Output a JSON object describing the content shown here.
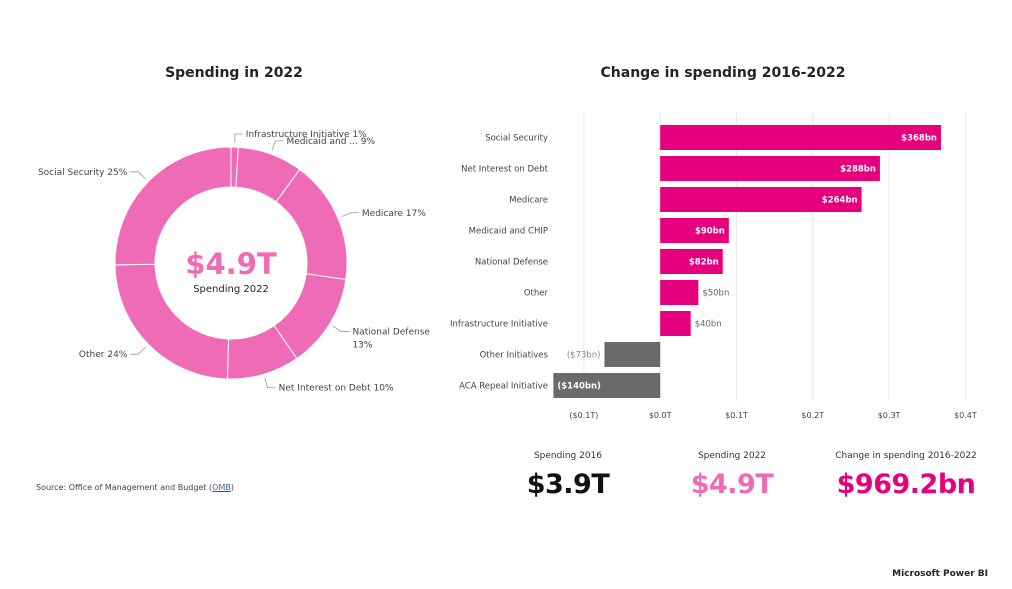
{
  "colors": {
    "pink": "#f06bb5",
    "magenta": "#e6007e",
    "gray": "#6a6a6a",
    "white": "#ffffff",
    "label": "#444444"
  },
  "source": {
    "prefix": "Source: Office of Management and Budget (",
    "link": "OMB",
    "suffix": ")"
  },
  "kpis": [
    {
      "label": "Spending 2016",
      "value": "$3.9T",
      "color": "#111111"
    },
    {
      "label": "Spending 2022",
      "value": "$4.9T",
      "color": "#f06bb5"
    },
    {
      "label": "Change in spending 2016-2022",
      "value": "$969.2bn",
      "color": "#e6007e"
    }
  ],
  "brand": "Microsoft Power BI",
  "chart_data": [
    {
      "type": "pie",
      "title": "Spending in 2022",
      "center_value": "$4.9T",
      "center_label": "Spending 2022",
      "slices": [
        {
          "name": "Infrastructure Initiative",
          "value": 1,
          "label": "Infrastructure Initiative 1%"
        },
        {
          "name": "Medicaid and ...",
          "value": 9,
          "label": "Medicaid and ... 9%"
        },
        {
          "name": "Medicare",
          "value": 17,
          "label": "Medicare 17%"
        },
        {
          "name": "National Defense",
          "value": 13,
          "label_lines": [
            "National Defense",
            "13%"
          ]
        },
        {
          "name": "Net Interest on Debt",
          "value": 10,
          "label": "Net Interest on Debt 10%"
        },
        {
          "name": "Other",
          "value": 24,
          "label": "Other 24%"
        },
        {
          "name": "Social Security",
          "value": 25,
          "label": "Social Security 25%"
        }
      ]
    },
    {
      "type": "bar",
      "orientation": "horizontal",
      "title": "Change in spending 2016-2022",
      "categories": [
        "Social Security",
        "Net Interest on Debt",
        "Medicare",
        "Medicaid and CHIP",
        "National Defense",
        "Other",
        "Infrastructure Initiative",
        "Other Initiatives",
        "ACA Repeal Initiative"
      ],
      "values": [
        368,
        288,
        264,
        90,
        82,
        50,
        40,
        -73,
        -140
      ],
      "value_labels": [
        "$368bn",
        "$288bn",
        "$264bn",
        "$90bn",
        "$82bn",
        "$50bn",
        "$40bn",
        "($73bn)",
        "($140bn)"
      ],
      "xlim": [
        -130,
        410
      ],
      "xticks": [
        -100,
        0,
        100,
        200,
        300,
        400
      ],
      "xtick_labels": [
        "($0.1T)",
        "$0.0T",
        "$0.1T",
        "$0.2T",
        "$0.3T",
        "$0.4T"
      ],
      "grid": true
    }
  ]
}
